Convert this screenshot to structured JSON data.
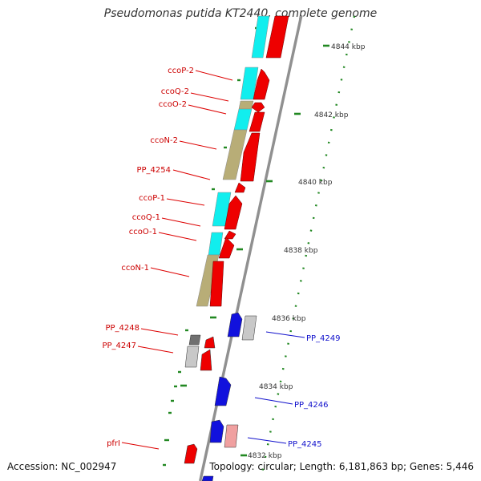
{
  "title": "Pseudomonas putida KT2440, complete genome",
  "accession_text": "Accession: NC_002947",
  "topology_text": "Topology: circular; Length: 6,181,863 bp; Genes: 5,446",
  "colors": {
    "forward_gene": "#ee0000",
    "reverse_gene": "#1111dd",
    "cyan_feature": "#11eeee",
    "khaki_feature": "#b8ad77",
    "grey_feature": "#c8c8c8",
    "darkgrey_feature": "#707070",
    "pink_feature": "#f0a0a0",
    "ruler": "#228822",
    "backbone": "#909090",
    "label_red": "#cc0000",
    "label_blue": "#1111cc"
  },
  "ruler_ticks": [
    "4844 kbp",
    "4842 kbp",
    "4840 kbp",
    "4838 kbp",
    "4836 kbp",
    "4834 kbp",
    "4832 kbp"
  ],
  "left_labels": [
    "ccoP-2",
    "ccoQ-2",
    "ccoO-2",
    "ccoN-2",
    "PP_4254",
    "ccoP-1",
    "ccoQ-1",
    "ccoO-1",
    "ccoN-1",
    "PP_4248",
    "PP_4247",
    "pfrI"
  ],
  "right_labels": [
    "PP_4249",
    "PP_4246",
    "PP_4245"
  ]
}
